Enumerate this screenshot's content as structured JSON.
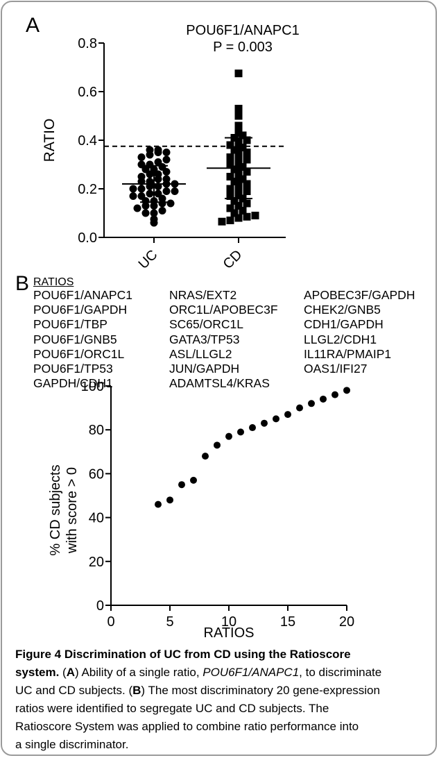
{
  "panel_a": {
    "letter": "A",
    "title_line1": "POU6F1/ANAPC1",
    "title_line2": "P = 0.003"
  },
  "panel_b": {
    "letter": "B",
    "ratios_header": "RATIOS",
    "ratios_columns": [
      [
        "POU6F1/ANAPC1",
        "POU6F1/GAPDH",
        "POU6F1/TBP",
        "POU6F1/GNB5",
        "POU6F1/ORC1L",
        "POU6F1/TP53",
        "GAPDH/CDH1"
      ],
      [
        "NRAS/EXT2",
        "ORC1L/APOBEC3F",
        "SC65/ORC1L",
        "GATA3/TP53",
        "ASL/LLGL2",
        "JUN/GAPDH",
        "ADAMTSL4/KRAS"
      ],
      [
        "APOBEC3F/GAPDH",
        "CHEK2/GNB5",
        "CDH1/GAPDH",
        "LLGL2/CDH1",
        "IL11RA/PMAIP1",
        "OAS1/IFI27"
      ]
    ]
  },
  "chart_data": [
    {
      "type": "scatter",
      "subtype": "dot-plot",
      "title": "POU6F1/ANAPC1",
      "subtitle": "P = 0.003",
      "xlabel": "",
      "ylabel": "RATIO",
      "categories": [
        "UC",
        "CD"
      ],
      "ylim": [
        0.0,
        0.8
      ],
      "yticks": [
        "0.0",
        "0.2",
        "0.4",
        "0.6",
        "0.8"
      ],
      "threshold": 0.375,
      "series": [
        {
          "category": "UC",
          "marker": "circle",
          "mean": 0.22,
          "error_bar": [
            0.145,
            0.295
          ],
          "points": [
            0.06,
            0.075,
            0.1,
            0.1,
            0.11,
            0.12,
            0.13,
            0.13,
            0.14,
            0.14,
            0.15,
            0.15,
            0.16,
            0.17,
            0.17,
            0.18,
            0.18,
            0.19,
            0.19,
            0.2,
            0.2,
            0.21,
            0.21,
            0.22,
            0.22,
            0.23,
            0.23,
            0.24,
            0.24,
            0.25,
            0.26,
            0.26,
            0.27,
            0.28,
            0.28,
            0.29,
            0.3,
            0.3,
            0.31,
            0.32,
            0.33,
            0.34,
            0.35,
            0.35,
            0.36,
            0.36
          ]
        },
        {
          "category": "CD",
          "marker": "square",
          "mean": 0.285,
          "error_bar": [
            0.16,
            0.41
          ],
          "points": [
            0.065,
            0.07,
            0.08,
            0.085,
            0.09,
            0.1,
            0.11,
            0.12,
            0.13,
            0.14,
            0.15,
            0.16,
            0.17,
            0.18,
            0.19,
            0.2,
            0.21,
            0.22,
            0.23,
            0.24,
            0.25,
            0.26,
            0.27,
            0.28,
            0.29,
            0.3,
            0.31,
            0.32,
            0.33,
            0.34,
            0.35,
            0.36,
            0.37,
            0.38,
            0.39,
            0.4,
            0.41,
            0.42,
            0.43,
            0.46,
            0.5,
            0.53,
            0.675
          ]
        }
      ]
    },
    {
      "type": "scatter",
      "xlabel": "RATIOS",
      "ylabel_line1": "% CD subjects",
      "ylabel_line2": "with score > 0",
      "xlim": [
        0,
        20
      ],
      "ylim": [
        0,
        100
      ],
      "xticks": [
        "0",
        "5",
        "10",
        "15",
        "20"
      ],
      "yticks": [
        "0",
        "20",
        "40",
        "60",
        "80",
        "100"
      ],
      "x": [
        4,
        5,
        6,
        7,
        8,
        9,
        10,
        11,
        12,
        13,
        14,
        15,
        16,
        17,
        18,
        19,
        20
      ],
      "y": [
        46,
        48,
        55,
        57,
        68,
        73,
        77,
        79,
        81,
        83,
        85,
        87,
        90,
        92,
        94,
        96,
        98
      ]
    }
  ],
  "caption": {
    "fig_label": "Figure 4",
    "fig_title_rest": " Discrimination of UC from CD using the Ratioscore",
    "fig_title_line2": "system.",
    "a_label": "A",
    "a_text_1": " Ability of a single ratio, ",
    "a_italic": "POU6F1/ANAPC1",
    "a_text_2": ", to discriminate",
    "a_line2": "UC and CD subjects. (",
    "b_label": "B",
    "b_text": ") The most discriminatory 20 gene-expression",
    "line4": "ratios were identified to segregate UC and CD subjects. The",
    "line5": "Ratioscore System was applied to combine ratio performance into",
    "line6": "a single discriminator."
  }
}
